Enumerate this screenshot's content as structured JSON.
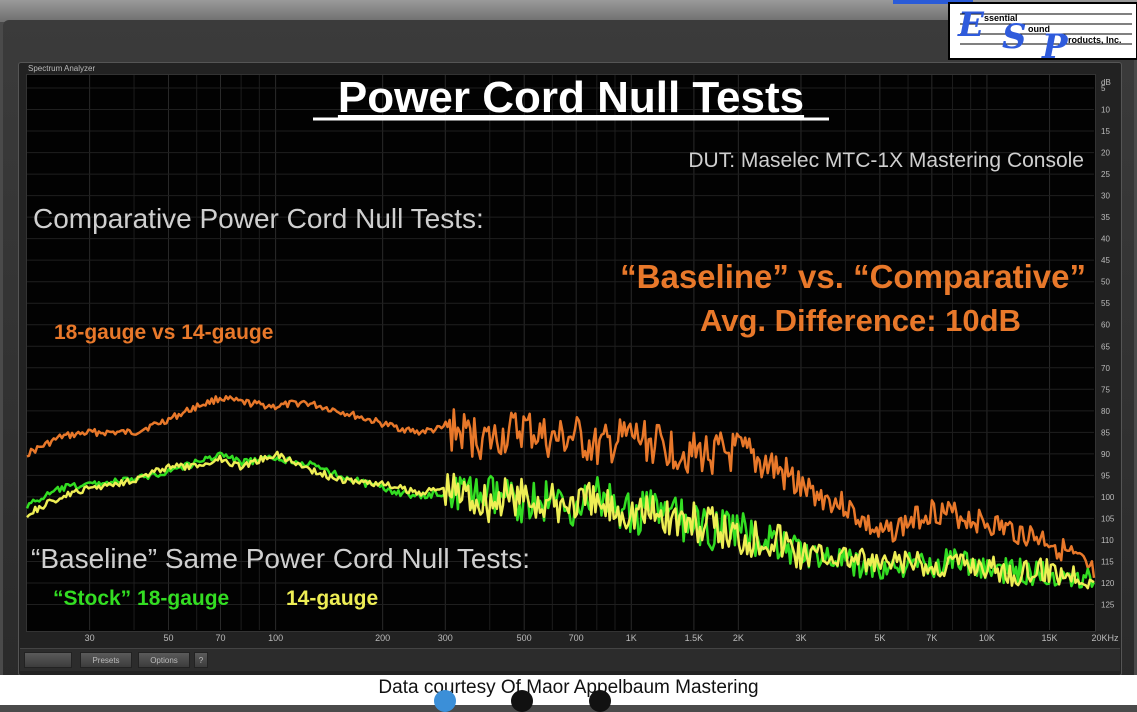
{
  "window": {
    "panel_title": "Spectrum Analyzer",
    "presets_label": "Presets",
    "options_label": "Options",
    "help_label": "?"
  },
  "logo": {
    "line1": "ssential",
    "line2": "ound",
    "line3": "roducts, Inc.",
    "colors": {
      "letters": "#2f5bdc"
    }
  },
  "credit": "Data courtesy Of Maor Appelbaum Mastering",
  "chart_data": {
    "type": "line",
    "title": "Power Cord Null Tests",
    "subtitle": "DUT: Maselec MTC-1X Mastering Console",
    "xscale": "log",
    "xlim": [
      20,
      20000
    ],
    "ylim": [
      0,
      125
    ],
    "y_inverted": true,
    "y_unit": "dB",
    "grid": true,
    "x_ticks": [
      {
        "v": 30,
        "label": "30"
      },
      {
        "v": 50,
        "label": "50"
      },
      {
        "v": 70,
        "label": "70"
      },
      {
        "v": 100,
        "label": "100"
      },
      {
        "v": 200,
        "label": "200"
      },
      {
        "v": 300,
        "label": "300"
      },
      {
        "v": 500,
        "label": "500"
      },
      {
        "v": 700,
        "label": "700"
      },
      {
        "v": 1000,
        "label": "1K"
      },
      {
        "v": 1500,
        "label": "1.5K"
      },
      {
        "v": 2000,
        "label": "2K"
      },
      {
        "v": 3000,
        "label": "3K"
      },
      {
        "v": 5000,
        "label": "5K"
      },
      {
        "v": 7000,
        "label": "7K"
      },
      {
        "v": 10000,
        "label": "10K"
      },
      {
        "v": 15000,
        "label": "15K"
      },
      {
        "v": 20000,
        "label": "20KHz"
      }
    ],
    "y_ticks": [
      "5",
      "10",
      "15",
      "20",
      "25",
      "30",
      "35",
      "40",
      "45",
      "50",
      "55",
      "60",
      "65",
      "70",
      "75",
      "80",
      "85",
      "90",
      "95",
      "100",
      "105",
      "110",
      "115",
      "120",
      "125"
    ],
    "annotations": {
      "comparative_heading": "Comparative Power Cord Null Tests:",
      "comparative_label": "18-gauge vs 14-gauge",
      "difference_line1": "“Baseline” vs. “Comparative”",
      "difference_line2": "Avg. Difference: 10dB",
      "baseline_heading": "“Baseline” Same Power Cord Null Tests:",
      "stock_label": "“Stock” 18-gauge",
      "gauge14_label": "14-gauge"
    },
    "series": [
      {
        "key": "comparative",
        "color": "#e8782a",
        "x": [
          20,
          25,
          30,
          40,
          50,
          60,
          70,
          80,
          100,
          120,
          150,
          200,
          250,
          300,
          400,
          500,
          600,
          700,
          800,
          1000,
          1200,
          1500,
          2000,
          2500,
          3000,
          4000,
          5000,
          6000,
          7000,
          8000,
          10000,
          12000,
          15000,
          18000,
          20000
        ],
        "y": [
          90,
          86,
          85,
          85,
          82,
          79,
          77,
          78,
          79,
          78,
          80,
          83,
          85,
          84,
          87,
          84,
          87,
          86,
          89,
          86,
          88,
          90,
          90,
          93,
          98,
          102,
          109,
          106,
          103,
          104,
          106,
          108,
          110,
          115,
          118
        ]
      },
      {
        "key": "stock_18_gauge",
        "color": "#33dd22",
        "x": [
          20,
          25,
          30,
          40,
          50,
          60,
          70,
          80,
          100,
          120,
          150,
          200,
          250,
          300,
          400,
          500,
          600,
          700,
          800,
          1000,
          1200,
          1500,
          2000,
          2500,
          3000,
          4000,
          5000,
          6000,
          7000,
          8000,
          10000,
          12000,
          15000,
          18000,
          20000
        ],
        "y": [
          102,
          98,
          97,
          96,
          94,
          92,
          90,
          92,
          91,
          92,
          95,
          98,
          100,
          99,
          100,
          101,
          101,
          102,
          100,
          104,
          103,
          107,
          108,
          110,
          113,
          115,
          117,
          116,
          116,
          114,
          117,
          117,
          118,
          118,
          119
        ]
      },
      {
        "key": "gauge_14",
        "color": "#eeee55",
        "x": [
          20,
          25,
          30,
          40,
          50,
          60,
          70,
          80,
          100,
          120,
          150,
          200,
          250,
          300,
          400,
          500,
          600,
          700,
          800,
          1000,
          1200,
          1500,
          2000,
          2500,
          3000,
          4000,
          5000,
          6000,
          7000,
          8000,
          10000,
          12000,
          15000,
          18000,
          20000
        ],
        "y": [
          104,
          100,
          98,
          96,
          93,
          93,
          91,
          93,
          90,
          93,
          96,
          97,
          99,
          98,
          101,
          100,
          102,
          101,
          102,
          103,
          104,
          106,
          109,
          109,
          113,
          114,
          116,
          115,
          117,
          115,
          116,
          118,
          117,
          118,
          119
        ]
      }
    ]
  }
}
